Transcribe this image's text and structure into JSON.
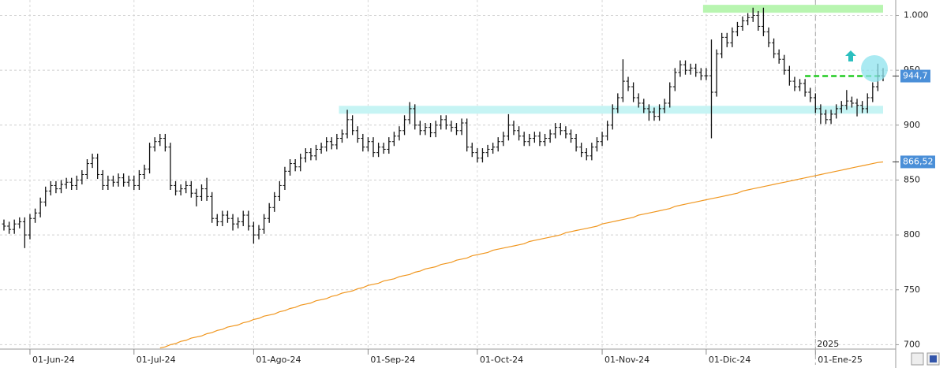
{
  "chart_data": {
    "type": "ohlc",
    "bar_color": "#111111",
    "ylim": [
      696,
      1014
    ],
    "yticks": [
      700,
      750,
      800,
      850,
      900,
      950,
      {
        "value": 1000,
        "label": "1.000"
      }
    ],
    "grid": true,
    "categories": [
      null,
      null,
      null,
      null,
      null,
      "01-Jun-24",
      null,
      null,
      null,
      null,
      null,
      null,
      null,
      null,
      null,
      null,
      null,
      null,
      null,
      null,
      null,
      null,
      null,
      null,
      null,
      "01-Jul-24",
      null,
      null,
      null,
      null,
      null,
      null,
      null,
      null,
      null,
      null,
      null,
      null,
      null,
      null,
      null,
      null,
      null,
      null,
      null,
      null,
      null,
      null,
      "01-Ago-24",
      null,
      null,
      null,
      null,
      null,
      null,
      null,
      null,
      null,
      null,
      null,
      null,
      null,
      null,
      null,
      null,
      null,
      null,
      null,
      null,
      null,
      "01-Sep-24",
      null,
      null,
      null,
      null,
      null,
      null,
      null,
      null,
      null,
      null,
      null,
      null,
      null,
      null,
      null,
      null,
      null,
      null,
      null,
      null,
      "01-Oct-24",
      null,
      null,
      null,
      null,
      null,
      null,
      null,
      null,
      null,
      null,
      null,
      null,
      null,
      null,
      null,
      null,
      null,
      null,
      null,
      null,
      null,
      null,
      null,
      "01-Nov-24",
      null,
      null,
      null,
      null,
      null,
      null,
      null,
      null,
      null,
      null,
      null,
      null,
      null,
      null,
      null,
      null,
      null,
      null,
      null,
      "01-Dic-24",
      null,
      null,
      null,
      null,
      null,
      null,
      null,
      null,
      null,
      null,
      null,
      null,
      null,
      null,
      null,
      null,
      null,
      null,
      null,
      null,
      "01-Ene-25",
      null,
      null,
      null,
      null,
      null,
      null,
      null,
      null,
      null,
      null,
      null,
      null,
      null
    ],
    "year_marker": {
      "label": "2025",
      "index": 156
    },
    "ohlc": [
      [
        810,
        814,
        804,
        808
      ],
      [
        808,
        812,
        801,
        805
      ],
      [
        805,
        814,
        801,
        810
      ],
      [
        810,
        816,
        806,
        812
      ],
      [
        812,
        816,
        788,
        800
      ],
      [
        800,
        819,
        796,
        815
      ],
      [
        815,
        824,
        811,
        820
      ],
      [
        820,
        834,
        816,
        830
      ],
      [
        830,
        844,
        826,
        840
      ],
      [
        840,
        849,
        836,
        845
      ],
      [
        845,
        849,
        838,
        842
      ],
      [
        842,
        850,
        838,
        846
      ],
      [
        846,
        852,
        842,
        848
      ],
      [
        848,
        852,
        841,
        845
      ],
      [
        845,
        854,
        841,
        850
      ],
      [
        850,
        859,
        846,
        855
      ],
      [
        855,
        869,
        851,
        865
      ],
      [
        865,
        874,
        861,
        870
      ],
      [
        870,
        874,
        851,
        855
      ],
      [
        855,
        859,
        841,
        845
      ],
      [
        845,
        854,
        841,
        850
      ],
      [
        850,
        854,
        844,
        848
      ],
      [
        848,
        856,
        844,
        852
      ],
      [
        852,
        856,
        844,
        848
      ],
      [
        848,
        854,
        844,
        850
      ],
      [
        850,
        854,
        841,
        845
      ],
      [
        845,
        859,
        841,
        855
      ],
      [
        855,
        864,
        851,
        860
      ],
      [
        860,
        884,
        856,
        880
      ],
      [
        880,
        889,
        876,
        885
      ],
      [
        885,
        892,
        881,
        888
      ],
      [
        888,
        892,
        876,
        880
      ],
      [
        880,
        884,
        841,
        845
      ],
      [
        845,
        849,
        836,
        840
      ],
      [
        840,
        846,
        836,
        842
      ],
      [
        842,
        849,
        838,
        845
      ],
      [
        845,
        849,
        834,
        838
      ],
      [
        838,
        842,
        826,
        835
      ],
      [
        835,
        846,
        831,
        842
      ],
      [
        842,
        852,
        831,
        835
      ],
      [
        835,
        839,
        811,
        815
      ],
      [
        815,
        819,
        808,
        812
      ],
      [
        812,
        822,
        808,
        818
      ],
      [
        818,
        822,
        811,
        815
      ],
      [
        815,
        819,
        804,
        810
      ],
      [
        810,
        816,
        806,
        812
      ],
      [
        812,
        822,
        808,
        818
      ],
      [
        818,
        822,
        804,
        808
      ],
      [
        808,
        812,
        792,
        800
      ],
      [
        800,
        809,
        796,
        805
      ],
      [
        805,
        819,
        801,
        815
      ],
      [
        815,
        829,
        811,
        825
      ],
      [
        825,
        839,
        821,
        835
      ],
      [
        835,
        849,
        831,
        845
      ],
      [
        845,
        862,
        841,
        858
      ],
      [
        858,
        869,
        854,
        865
      ],
      [
        865,
        869,
        858,
        862
      ],
      [
        862,
        874,
        858,
        870
      ],
      [
        870,
        879,
        866,
        875
      ],
      [
        875,
        879,
        868,
        872
      ],
      [
        872,
        882,
        868,
        878
      ],
      [
        878,
        884,
        874,
        880
      ],
      [
        880,
        889,
        876,
        885
      ],
      [
        885,
        889,
        878,
        882
      ],
      [
        882,
        892,
        878,
        888
      ],
      [
        888,
        896,
        884,
        892
      ],
      [
        892,
        914,
        888,
        905
      ],
      [
        905,
        909,
        891,
        895
      ],
      [
        895,
        899,
        884,
        888
      ],
      [
        888,
        892,
        876,
        880
      ],
      [
        880,
        889,
        876,
        885
      ],
      [
        885,
        889,
        871,
        875
      ],
      [
        875,
        884,
        871,
        880
      ],
      [
        880,
        884,
        874,
        878
      ],
      [
        878,
        889,
        874,
        885
      ],
      [
        885,
        894,
        881,
        890
      ],
      [
        890,
        899,
        886,
        895
      ],
      [
        895,
        909,
        891,
        905
      ],
      [
        905,
        921,
        901,
        915
      ],
      [
        915,
        919,
        896,
        900
      ],
      [
        900,
        904,
        891,
        895
      ],
      [
        895,
        902,
        891,
        898
      ],
      [
        898,
        902,
        889,
        893
      ],
      [
        893,
        904,
        889,
        900
      ],
      [
        900,
        909,
        896,
        905
      ],
      [
        905,
        909,
        896,
        900
      ],
      [
        900,
        904,
        894,
        898
      ],
      [
        898,
        902,
        891,
        895
      ],
      [
        895,
        906,
        891,
        902
      ],
      [
        902,
        906,
        876,
        880
      ],
      [
        880,
        884,
        871,
        875
      ],
      [
        875,
        879,
        866,
        870
      ],
      [
        870,
        879,
        866,
        875
      ],
      [
        875,
        882,
        871,
        878
      ],
      [
        878,
        884,
        874,
        880
      ],
      [
        880,
        889,
        876,
        885
      ],
      [
        885,
        894,
        881,
        890
      ],
      [
        890,
        910,
        886,
        900
      ],
      [
        900,
        904,
        891,
        895
      ],
      [
        895,
        899,
        886,
        890
      ],
      [
        890,
        894,
        881,
        885
      ],
      [
        885,
        892,
        881,
        888
      ],
      [
        888,
        894,
        884,
        890
      ],
      [
        890,
        894,
        881,
        885
      ],
      [
        885,
        892,
        881,
        888
      ],
      [
        888,
        896,
        884,
        892
      ],
      [
        892,
        902,
        888,
        898
      ],
      [
        898,
        902,
        891,
        895
      ],
      [
        895,
        899,
        888,
        892
      ],
      [
        892,
        896,
        884,
        888
      ],
      [
        888,
        892,
        876,
        880
      ],
      [
        880,
        884,
        871,
        875
      ],
      [
        875,
        879,
        868,
        872
      ],
      [
        872,
        884,
        868,
        880
      ],
      [
        880,
        889,
        876,
        885
      ],
      [
        885,
        894,
        881,
        890
      ],
      [
        890,
        904,
        886,
        900
      ],
      [
        900,
        919,
        896,
        915
      ],
      [
        915,
        929,
        911,
        925
      ],
      [
        925,
        960,
        921,
        940
      ],
      [
        940,
        944,
        931,
        935
      ],
      [
        935,
        939,
        921,
        925
      ],
      [
        925,
        929,
        916,
        920
      ],
      [
        920,
        924,
        911,
        915
      ],
      [
        915,
        919,
        904,
        912
      ],
      [
        912,
        916,
        904,
        908
      ],
      [
        908,
        919,
        904,
        915
      ],
      [
        915,
        924,
        911,
        920
      ],
      [
        920,
        939,
        916,
        935
      ],
      [
        935,
        952,
        931,
        948
      ],
      [
        948,
        959,
        944,
        955
      ],
      [
        955,
        959,
        946,
        950
      ],
      [
        950,
        956,
        946,
        952
      ],
      [
        952,
        956,
        944,
        948
      ],
      [
        948,
        952,
        941,
        945
      ],
      [
        945,
        952,
        941,
        945
      ],
      [
        945,
        978,
        888,
        930
      ],
      [
        930,
        969,
        926,
        965
      ],
      [
        965,
        984,
        961,
        980
      ],
      [
        980,
        984,
        971,
        975
      ],
      [
        975,
        989,
        971,
        985
      ],
      [
        985,
        994,
        981,
        990
      ],
      [
        990,
        999,
        986,
        995
      ],
      [
        995,
        1002,
        991,
        998
      ],
      [
        998,
        1007,
        994,
        1000
      ],
      [
        1000,
        1004,
        986,
        990
      ],
      [
        990,
        1007,
        981,
        985
      ],
      [
        985,
        989,
        971,
        975
      ],
      [
        975,
        979,
        961,
        965
      ],
      [
        965,
        969,
        956,
        960
      ],
      [
        960,
        964,
        946,
        950
      ],
      [
        950,
        954,
        936,
        940
      ],
      [
        940,
        944,
        931,
        935
      ],
      [
        935,
        942,
        931,
        938
      ],
      [
        938,
        942,
        926,
        930
      ],
      [
        930,
        934,
        921,
        925
      ],
      [
        925,
        929,
        911,
        915
      ],
      [
        915,
        919,
        901,
        910
      ],
      [
        910,
        914,
        901,
        905
      ],
      [
        905,
        914,
        901,
        910
      ],
      [
        910,
        919,
        906,
        915
      ],
      [
        915,
        922,
        911,
        918
      ],
      [
        918,
        932,
        914,
        922
      ],
      [
        922,
        926,
        916,
        920
      ],
      [
        920,
        924,
        908,
        918
      ],
      [
        918,
        922,
        911,
        915
      ],
      [
        915,
        929,
        911,
        925
      ],
      [
        925,
        939,
        921,
        935
      ],
      [
        935,
        956,
        931,
        945
      ],
      [
        945,
        952,
        940,
        944.7
      ]
    ],
    "ma": {
      "color": "#f0961e",
      "value_label": "866,52",
      "values": [
        null,
        null,
        null,
        null,
        null,
        null,
        null,
        null,
        null,
        null,
        null,
        null,
        null,
        null,
        null,
        null,
        null,
        null,
        null,
        null,
        null,
        null,
        null,
        null,
        null,
        null,
        null,
        null,
        null,
        null,
        697,
        698,
        700,
        701,
        703,
        704,
        706,
        707,
        708,
        710,
        711,
        713,
        714,
        716,
        717,
        718,
        720,
        721,
        723,
        724,
        726,
        727,
        728,
        730,
        731,
        733,
        734,
        736,
        737,
        738,
        740,
        741,
        742,
        744,
        745,
        747,
        748,
        749,
        751,
        752,
        754,
        755,
        756,
        758,
        759,
        760,
        762,
        763,
        764,
        766,
        767,
        769,
        770,
        771,
        773,
        774,
        775,
        777,
        778,
        779,
        781,
        782,
        783,
        784,
        786,
        787,
        788,
        789,
        790,
        791,
        792,
        794,
        795,
        796,
        797,
        798,
        799,
        800,
        802,
        803,
        804,
        805,
        806,
        807,
        808,
        810,
        811,
        812,
        813,
        814,
        815,
        816,
        818,
        819,
        820,
        821,
        822,
        823,
        824,
        826,
        827,
        828,
        829,
        830,
        831,
        832,
        833,
        834,
        835,
        836,
        837,
        838,
        840,
        841,
        842,
        843,
        844,
        845,
        846,
        847,
        848,
        849,
        850,
        851,
        852,
        853,
        854,
        855,
        856,
        857,
        858,
        859,
        860,
        861,
        862,
        863,
        864,
        865,
        866,
        866.52
      ]
    },
    "last_price": {
      "value": 944.7,
      "label": "944,7",
      "color": "#22cc22"
    },
    "bands": [
      {
        "value": 1006,
        "from": 135,
        "color": "#b8f5b0"
      },
      {
        "value": 914,
        "from": 65,
        "color": "#c6f4f4"
      }
    ]
  }
}
